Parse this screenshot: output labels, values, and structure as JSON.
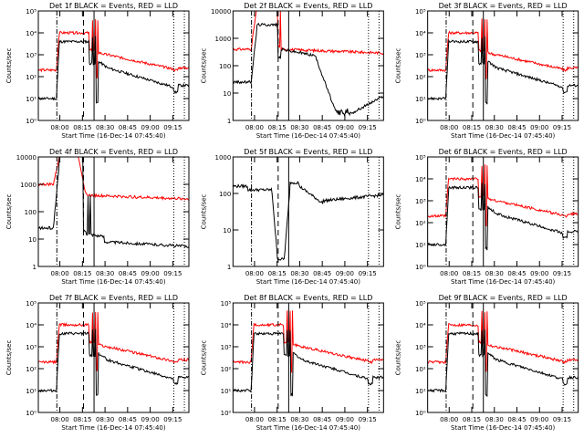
{
  "chart_data": [
    {
      "type": "line",
      "title": "Det 1f BLACK = Events, RED = LLD",
      "xlabel": "Start Time (16-Dec-14 07:45:40)",
      "ylabel": "Counts/sec",
      "scale": "log",
      "tick_style": "pow",
      "y_tick_labels": [
        "10⁰",
        "10¹",
        "10²",
        "10³",
        "10⁴",
        "10⁵"
      ],
      "x_tick_labels": [
        "08:00",
        "08:15",
        "08:30",
        "08:45",
        "09:00",
        "09:15"
      ],
      "profile": "A",
      "red_level": 5,
      "black_level": 3
    },
    {
      "type": "line",
      "title": "Det 2f BLACK = Events, RED = LLD",
      "xlabel": "Start Time (16-Dec-14 07:45:40)",
      "ylabel": "Counts/sec",
      "scale": "log",
      "tick_style": "plain",
      "y_tick_labels": [
        "1",
        "10",
        "100",
        "1000",
        "10000"
      ],
      "x_tick_labels": [
        "08:00",
        "08:15",
        "08:30",
        "08:45",
        "09:00",
        "09:15"
      ],
      "profile": "B",
      "red_level": 5,
      "black_level": 3
    },
    {
      "type": "line",
      "title": "Det 3f BLACK = Events, RED = LLD",
      "xlabel": "Start Time (16-Dec-14 07:45:40)",
      "ylabel": "Counts/sec",
      "scale": "log",
      "tick_style": "pow",
      "y_tick_labels": [
        "10⁰",
        "10¹",
        "10²",
        "10³",
        "10⁴",
        "10⁵"
      ],
      "x_tick_labels": [
        "08:00",
        "08:15",
        "08:30",
        "08:45",
        "09:00",
        "09:15"
      ],
      "profile": "A",
      "red_level": 5,
      "black_level": 3
    },
    {
      "type": "line",
      "title": "Det 4f BLACK = Events, RED = LLD",
      "xlabel": "Start Time (16-Dec-14 07:45:40)",
      "ylabel": "Counts/sec",
      "scale": "log",
      "tick_style": "plain",
      "y_tick_labels": [
        "1",
        "10",
        "100",
        "1000",
        "10000"
      ],
      "x_tick_labels": [
        "08:00",
        "08:15",
        "08:30",
        "08:45",
        "09:00",
        "09:15"
      ],
      "profile": "C",
      "red_level": 5,
      "black_level": 3
    },
    {
      "type": "line",
      "title": "Det 5f BLACK = Events, RED = LLD",
      "xlabel": "Start Time (16-Dec-14 07:45:40)",
      "ylabel": "Counts/sec",
      "scale": "log",
      "tick_style": "plain",
      "y_tick_labels": [
        "1",
        "10",
        "100",
        "1000"
      ],
      "x_tick_labels": [
        "08:00",
        "08:15",
        "08:30",
        "08:45",
        "09:00",
        "09:15"
      ],
      "profile": "D",
      "red_level": 4,
      "black_level": 2
    },
    {
      "type": "line",
      "title": "Det 6f BLACK = Events, RED = LLD",
      "xlabel": "Start Time (16-Dec-14 07:45:40)",
      "ylabel": "Counts/sec",
      "scale": "log",
      "tick_style": "pow",
      "y_tick_labels": [
        "10⁰",
        "10¹",
        "10²",
        "10³",
        "10⁴",
        "10⁵"
      ],
      "x_tick_labels": [
        "08:00",
        "08:15",
        "08:30",
        "08:45",
        "09:00",
        "09:15"
      ],
      "profile": "A",
      "red_level": 5,
      "black_level": 3
    },
    {
      "type": "line",
      "title": "Det 7f BLACK = Events, RED = LLD",
      "xlabel": "Start Time (16-Dec-14 07:45:40)",
      "ylabel": "Counts/sec",
      "scale": "log",
      "tick_style": "pow",
      "y_tick_labels": [
        "10⁰",
        "10¹",
        "10²",
        "10³",
        "10⁴",
        "10⁵"
      ],
      "x_tick_labels": [
        "08:00",
        "08:15",
        "08:30",
        "08:45",
        "09:00",
        "09:15"
      ],
      "profile": "A",
      "red_level": 5,
      "black_level": 3
    },
    {
      "type": "line",
      "title": "Det 8f BLACK = Events, RED = LLD",
      "xlabel": "Start Time (16-Dec-14 07:45:40)",
      "ylabel": "Counts/sec",
      "scale": "log",
      "tick_style": "pow",
      "y_tick_labels": [
        "10⁰",
        "10¹",
        "10²",
        "10³",
        "10⁴",
        "10⁵"
      ],
      "x_tick_labels": [
        "08:00",
        "08:15",
        "08:30",
        "08:45",
        "09:00",
        "09:15"
      ],
      "profile": "A",
      "red_level": 5,
      "black_level": 3
    },
    {
      "type": "line",
      "title": "Det 9f BLACK = Events, RED = LLD",
      "xlabel": "Start Time (16-Dec-14 07:45:40)",
      "ylabel": "Counts/sec",
      "scale": "log",
      "tick_style": "pow",
      "y_tick_labels": [
        "10⁰",
        "10¹",
        "10²",
        "10³",
        "10⁴",
        "10⁵"
      ],
      "x_tick_labels": [
        "08:00",
        "08:15",
        "08:30",
        "08:45",
        "09:00",
        "09:15"
      ],
      "profile": "A",
      "red_level": 5,
      "black_level": 3
    }
  ],
  "colors": {
    "events": "#000000",
    "lld": "#ff0000",
    "axes": "#000000"
  },
  "x_range_minutes": [
    0,
    100
  ],
  "markers_minutes": {
    "dash_dot": 12.3,
    "dashed": 30,
    "solid": 37,
    "dotted": [
      90,
      97
    ]
  }
}
